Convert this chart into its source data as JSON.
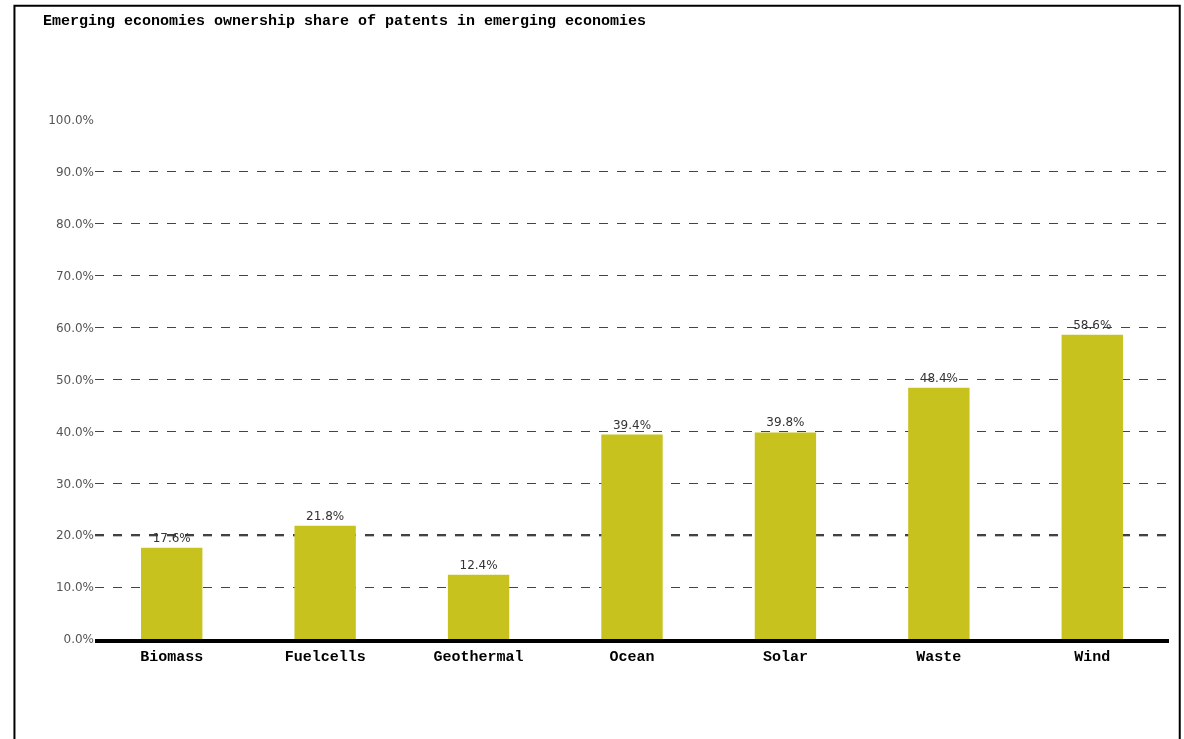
{
  "chart_data": {
    "type": "bar",
    "title": "Emerging economies ownership share of patents in emerging economies",
    "categories": [
      "Biomass",
      "Fuelcells",
      "Geothermal",
      "Ocean",
      "Solar",
      "Waste",
      "Wind"
    ],
    "values": [
      17.6,
      21.8,
      12.4,
      39.4,
      39.8,
      48.4,
      58.6
    ],
    "value_labels": [
      "17.6%",
      "21.8%",
      "12.4%",
      "39.4%",
      "39.8%",
      "48.4%",
      "58.6%"
    ],
    "color": "#c8c21e",
    "ylim": [
      0,
      100
    ],
    "yticks": [
      {
        "value": 0,
        "label": "0.0%"
      },
      {
        "value": 10,
        "label": "10.0%"
      },
      {
        "value": 20,
        "label": "20.0%"
      },
      {
        "value": 30,
        "label": "30.0%"
      },
      {
        "value": 40,
        "label": "40.0%"
      },
      {
        "value": 50,
        "label": "50.0%"
      },
      {
        "value": 60,
        "label": "60.0%"
      },
      {
        "value": 70,
        "label": "70.0%"
      },
      {
        "value": 80,
        "label": "80.0%"
      },
      {
        "value": 90,
        "label": "90.0%"
      },
      {
        "value": 100,
        "label": "100.0%"
      }
    ],
    "grid": "y",
    "ref_lines": [
      {
        "axis": "y",
        "value": 20,
        "label": null,
        "color": "#000000",
        "line_style": "dashed"
      }
    ]
  }
}
